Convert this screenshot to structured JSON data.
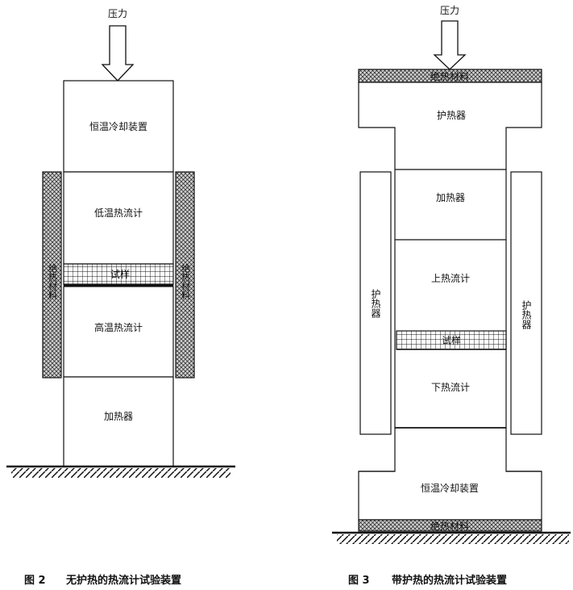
{
  "fig2": {
    "pressure": "压力",
    "cooler": "恒温冷却装置",
    "low_meter": "低温热流计",
    "sample": "试样",
    "high_meter": "高温热流计",
    "heater": "加热器",
    "insulation_left": "绝热材料",
    "insulation_right": "绝热材料",
    "caption_num": "图 2",
    "caption_text": "无护热的热流计试验装置"
  },
  "fig3": {
    "pressure": "压力",
    "insulation_top": "绝热材料",
    "guard_top": "护热器",
    "heater": "加热器",
    "upper_meter": "上热流计",
    "sample": "试样",
    "lower_meter": "下热流计",
    "guard_left": "护热器",
    "guard_right": "护热器",
    "cooler": "恒温冷却装置",
    "insulation_bottom": "绝热材料",
    "caption_num": "图 3",
    "caption_text": "带护热的热流计试验装置"
  }
}
